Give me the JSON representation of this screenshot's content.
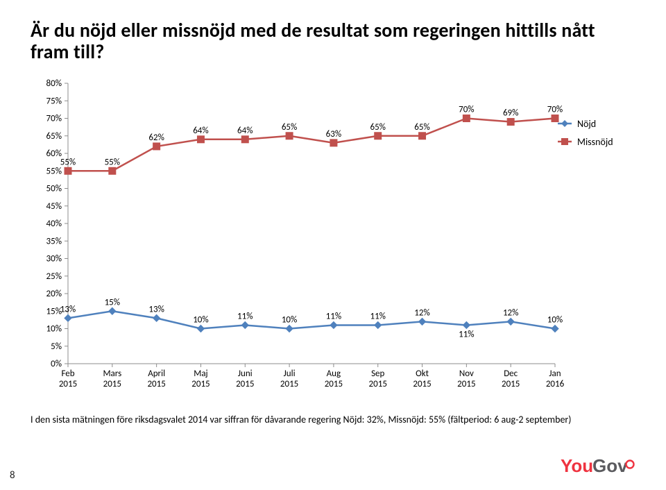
{
  "title": "Är du nöjd eller missnöjd med de resultat som regeringen hittills nått fram till?",
  "footnote": "I den sista mätningen före riksdagsvalet 2014 var siffran för dåvarande regering Nöjd: 32%, Missnöjd: 55% (fältperiod: 6 aug-2 september)",
  "page_num": "8",
  "chart": {
    "type": "line",
    "background_color": "#ffffff",
    "font_family": "Calibri, 'Segoe UI', Arial, sans-serif",
    "axis_fontsize": 13,
    "data_label_fontsize": 13,
    "legend_fontsize": 14,
    "tick_color": "#8c8c8c",
    "grid_color": "#e0e0e0",
    "line_width": 2.5,
    "marker_size": 5,
    "legend_marker_halflen": 10,
    "ylim": [
      0,
      80
    ],
    "ytick_step": 5,
    "categories": [
      "Feb\n2015",
      "Mars\n2015",
      "April\n2015",
      "Maj\n2015",
      "Juni\n2015",
      "Juli\n2015",
      "Aug\n2015",
      "Sep\n2015",
      "Okt\n2015",
      "Nov\n2015",
      "Dec\n2015",
      "Jan\n2016"
    ],
    "series": [
      {
        "name": "Nöjd",
        "color": "#4f81bd",
        "marker": "diamond",
        "values": [
          13,
          15,
          13,
          10,
          11,
          10,
          11,
          11,
          12,
          11,
          12,
          10
        ]
      },
      {
        "name": "Missnöjd",
        "color": "#c0504d",
        "marker": "square",
        "values": [
          55,
          55,
          62,
          64,
          64,
          65,
          63,
          65,
          65,
          70,
          69,
          70
        ]
      }
    ],
    "legend_position": "right-top"
  },
  "logo": {
    "text": "YouGov",
    "colors": {
      "you": "#ef3340",
      "gov": "#5b5b5f",
      "dot_fill": "#ffffff",
      "dot_stroke": "#ef3340"
    }
  }
}
